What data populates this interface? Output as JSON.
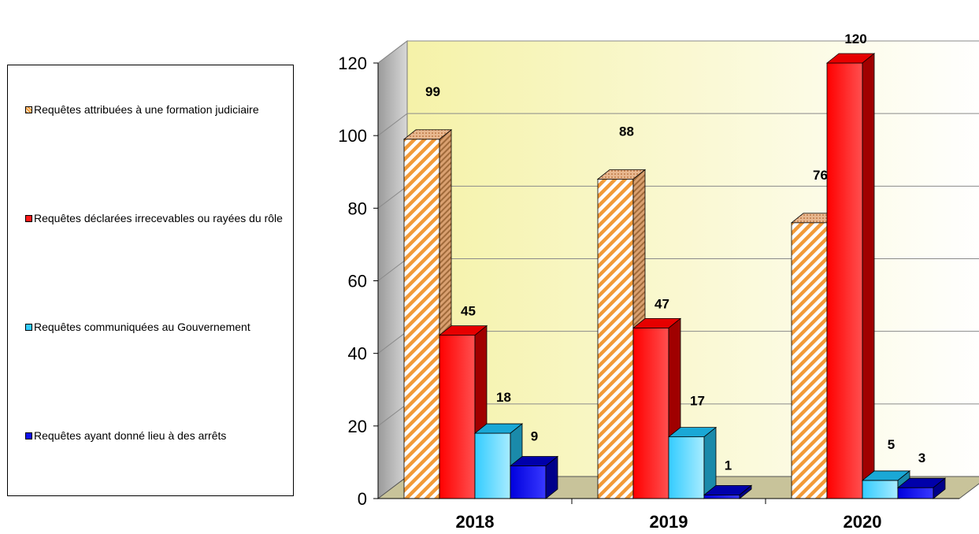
{
  "legend": {
    "items": [
      {
        "label": "Requêtes attribuées à une formation judiciaire",
        "color": "#f29a38"
      },
      {
        "label": "Requêtes déclarées irrecevables ou rayées du rôle",
        "color": "#ff1a1a"
      },
      {
        "label": "Requêtes communiquées au Gouvernement",
        "color": "#33ccff"
      },
      {
        "label": "Requêtes ayant donné lieu à des arrêts",
        "color": "#1010ee"
      }
    ]
  },
  "chart_data": {
    "type": "bar",
    "categories": [
      "2018",
      "2019",
      "2020"
    ],
    "series": [
      {
        "name": "Requêtes attribuées à une formation judiciaire",
        "values": [
          99,
          88,
          76
        ],
        "color": "#f29a38",
        "pattern": "hatched"
      },
      {
        "name": "Requêtes déclarées irrecevables ou rayées du rôle",
        "values": [
          45,
          47,
          120
        ],
        "color": "#ff1a1a"
      },
      {
        "name": "Requêtes communiquées au Gouvernement",
        "values": [
          18,
          17,
          5
        ],
        "color": "#33ccff"
      },
      {
        "name": "Requêtes ayant donné lieu à des arrêts",
        "values": [
          9,
          1,
          3
        ],
        "color": "#1010ee"
      }
    ],
    "y_ticks": [
      "0",
      "20",
      "40",
      "60",
      "80",
      "100",
      "120"
    ],
    "ylim": [
      0,
      120
    ],
    "grid": true,
    "legend_position": "left",
    "style": "3d"
  }
}
